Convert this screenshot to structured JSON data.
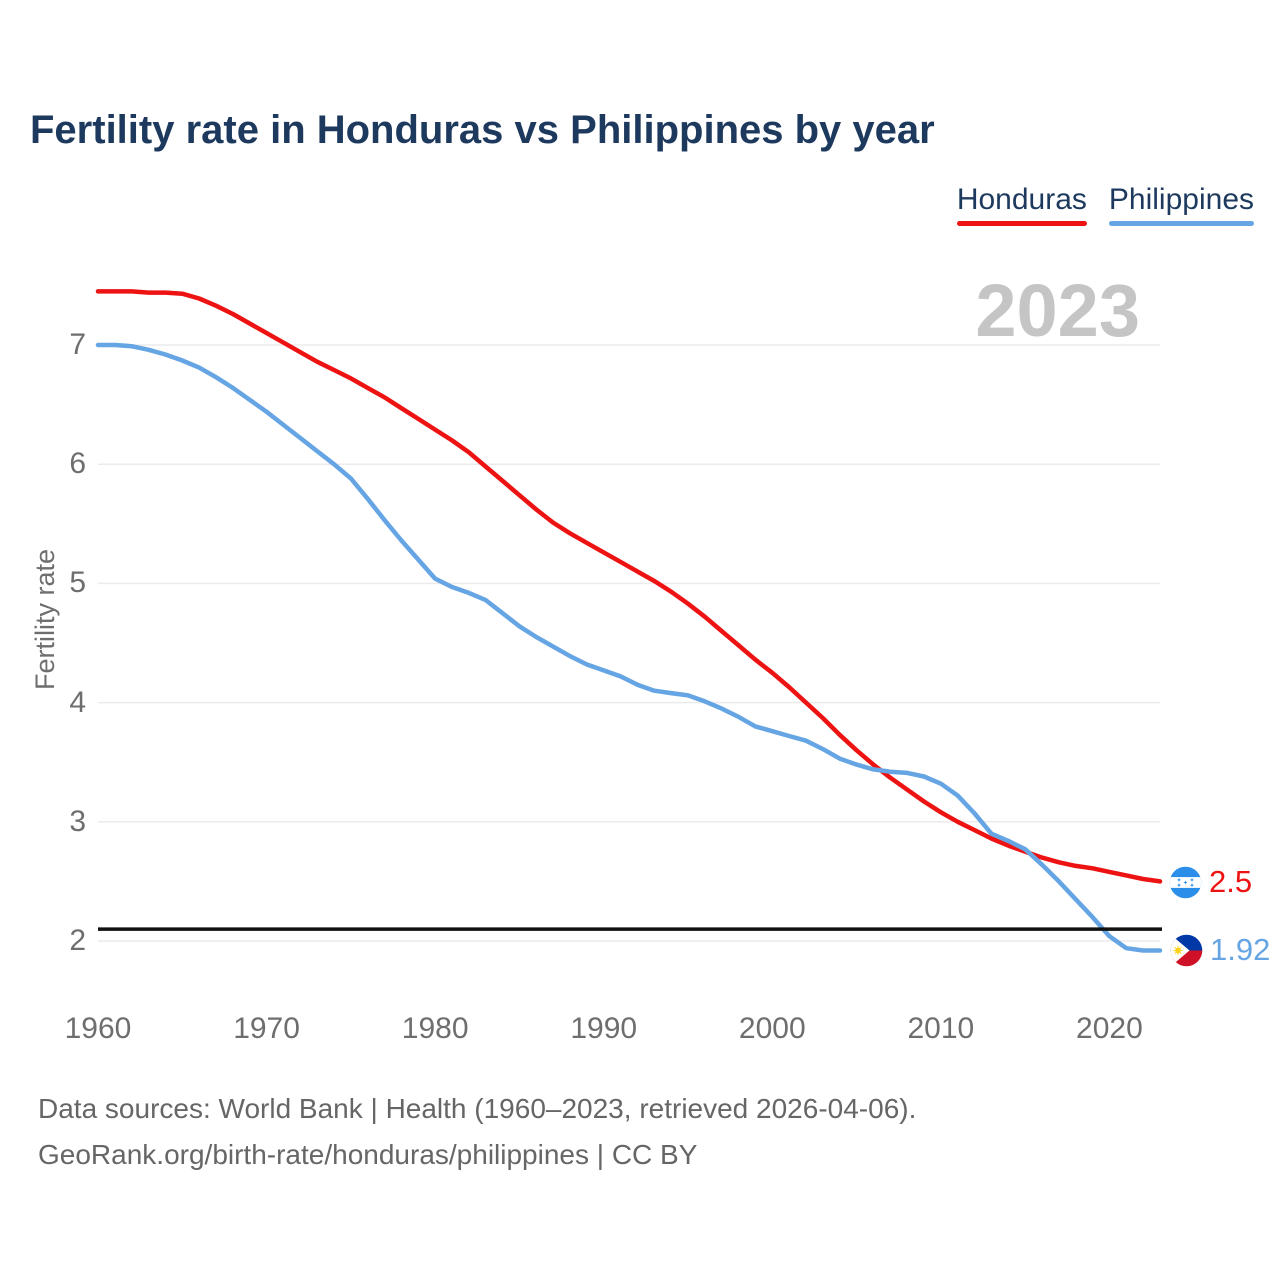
{
  "header": {
    "title": "Fertility rate in Honduras vs Philippines by year"
  },
  "legend": {
    "items": [
      {
        "label": "Honduras",
        "color": "#ee1313"
      },
      {
        "label": "Philippines",
        "color": "#66a5e4"
      }
    ]
  },
  "watermark": "2023",
  "chart_data": {
    "type": "line",
    "title": "Fertility rate in Honduras vs Philippines by year",
    "xlabel": "",
    "ylabel": "Fertility rate",
    "x_start": 1960,
    "x_end": 2023,
    "xticks": [
      1960,
      1970,
      1980,
      1990,
      2000,
      2010,
      2020
    ],
    "yticks": [
      2,
      3,
      4,
      5,
      6,
      7
    ],
    "ylim": [
      1.75,
      7.6
    ],
    "grid": "horizontal",
    "legend_position": "top-right",
    "watermark": "2023",
    "reference_line": {
      "value": 2.1,
      "color": "#111111"
    },
    "years": [
      1960,
      1961,
      1962,
      1963,
      1964,
      1965,
      1966,
      1967,
      1968,
      1969,
      1970,
      1971,
      1972,
      1973,
      1974,
      1975,
      1976,
      1977,
      1978,
      1979,
      1980,
      1981,
      1982,
      1983,
      1984,
      1985,
      1986,
      1987,
      1988,
      1989,
      1990,
      1991,
      1992,
      1993,
      1994,
      1995,
      1996,
      1997,
      1998,
      1999,
      2000,
      2001,
      2002,
      2003,
      2004,
      2005,
      2006,
      2007,
      2008,
      2009,
      2010,
      2011,
      2012,
      2013,
      2014,
      2015,
      2016,
      2017,
      2018,
      2019,
      2020,
      2021,
      2022,
      2023
    ],
    "series": [
      {
        "name": "Honduras",
        "color": "#ee1313",
        "end_label": "2.5",
        "flag_icon": "honduras-flag-icon",
        "values": [
          7.45,
          7.45,
          7.45,
          7.44,
          7.44,
          7.43,
          7.39,
          7.33,
          7.26,
          7.18,
          7.1,
          7.02,
          6.94,
          6.86,
          6.79,
          6.72,
          6.64,
          6.56,
          6.47,
          6.38,
          6.29,
          6.2,
          6.1,
          5.98,
          5.86,
          5.74,
          5.62,
          5.51,
          5.42,
          5.34,
          5.26,
          5.18,
          5.1,
          5.02,
          4.93,
          4.83,
          4.72,
          4.6,
          4.48,
          4.36,
          4.25,
          4.13,
          4.0,
          3.87,
          3.73,
          3.6,
          3.48,
          3.37,
          3.27,
          3.17,
          3.08,
          3.0,
          2.93,
          2.86,
          2.8,
          2.75,
          2.7,
          2.66,
          2.63,
          2.61,
          2.58,
          2.55,
          2.52,
          2.5
        ]
      },
      {
        "name": "Philippines",
        "color": "#66a5e4",
        "end_label": "1.92",
        "flag_icon": "philippines-flag-icon",
        "values": [
          7.0,
          7.0,
          6.99,
          6.96,
          6.92,
          6.87,
          6.81,
          6.73,
          6.64,
          6.54,
          6.44,
          6.33,
          6.22,
          6.11,
          6.0,
          5.88,
          5.71,
          5.53,
          5.36,
          5.2,
          5.04,
          4.97,
          4.92,
          4.86,
          4.75,
          4.64,
          4.55,
          4.47,
          4.39,
          4.32,
          4.27,
          4.22,
          4.15,
          4.1,
          4.08,
          4.06,
          4.01,
          3.95,
          3.88,
          3.8,
          3.76,
          3.72,
          3.68,
          3.61,
          3.53,
          3.48,
          3.44,
          3.42,
          3.41,
          3.38,
          3.32,
          3.22,
          3.07,
          2.9,
          2.84,
          2.77,
          2.64,
          2.5,
          2.35,
          2.2,
          2.04,
          1.94,
          1.92,
          1.92
        ]
      }
    ]
  },
  "footer": {
    "line1": "Data sources: World Bank | Health (1960–2023, retrieved 2026-04-06).",
    "line2": "GeoRank.org/birth-rate/honduras/philippines | CC BY"
  }
}
